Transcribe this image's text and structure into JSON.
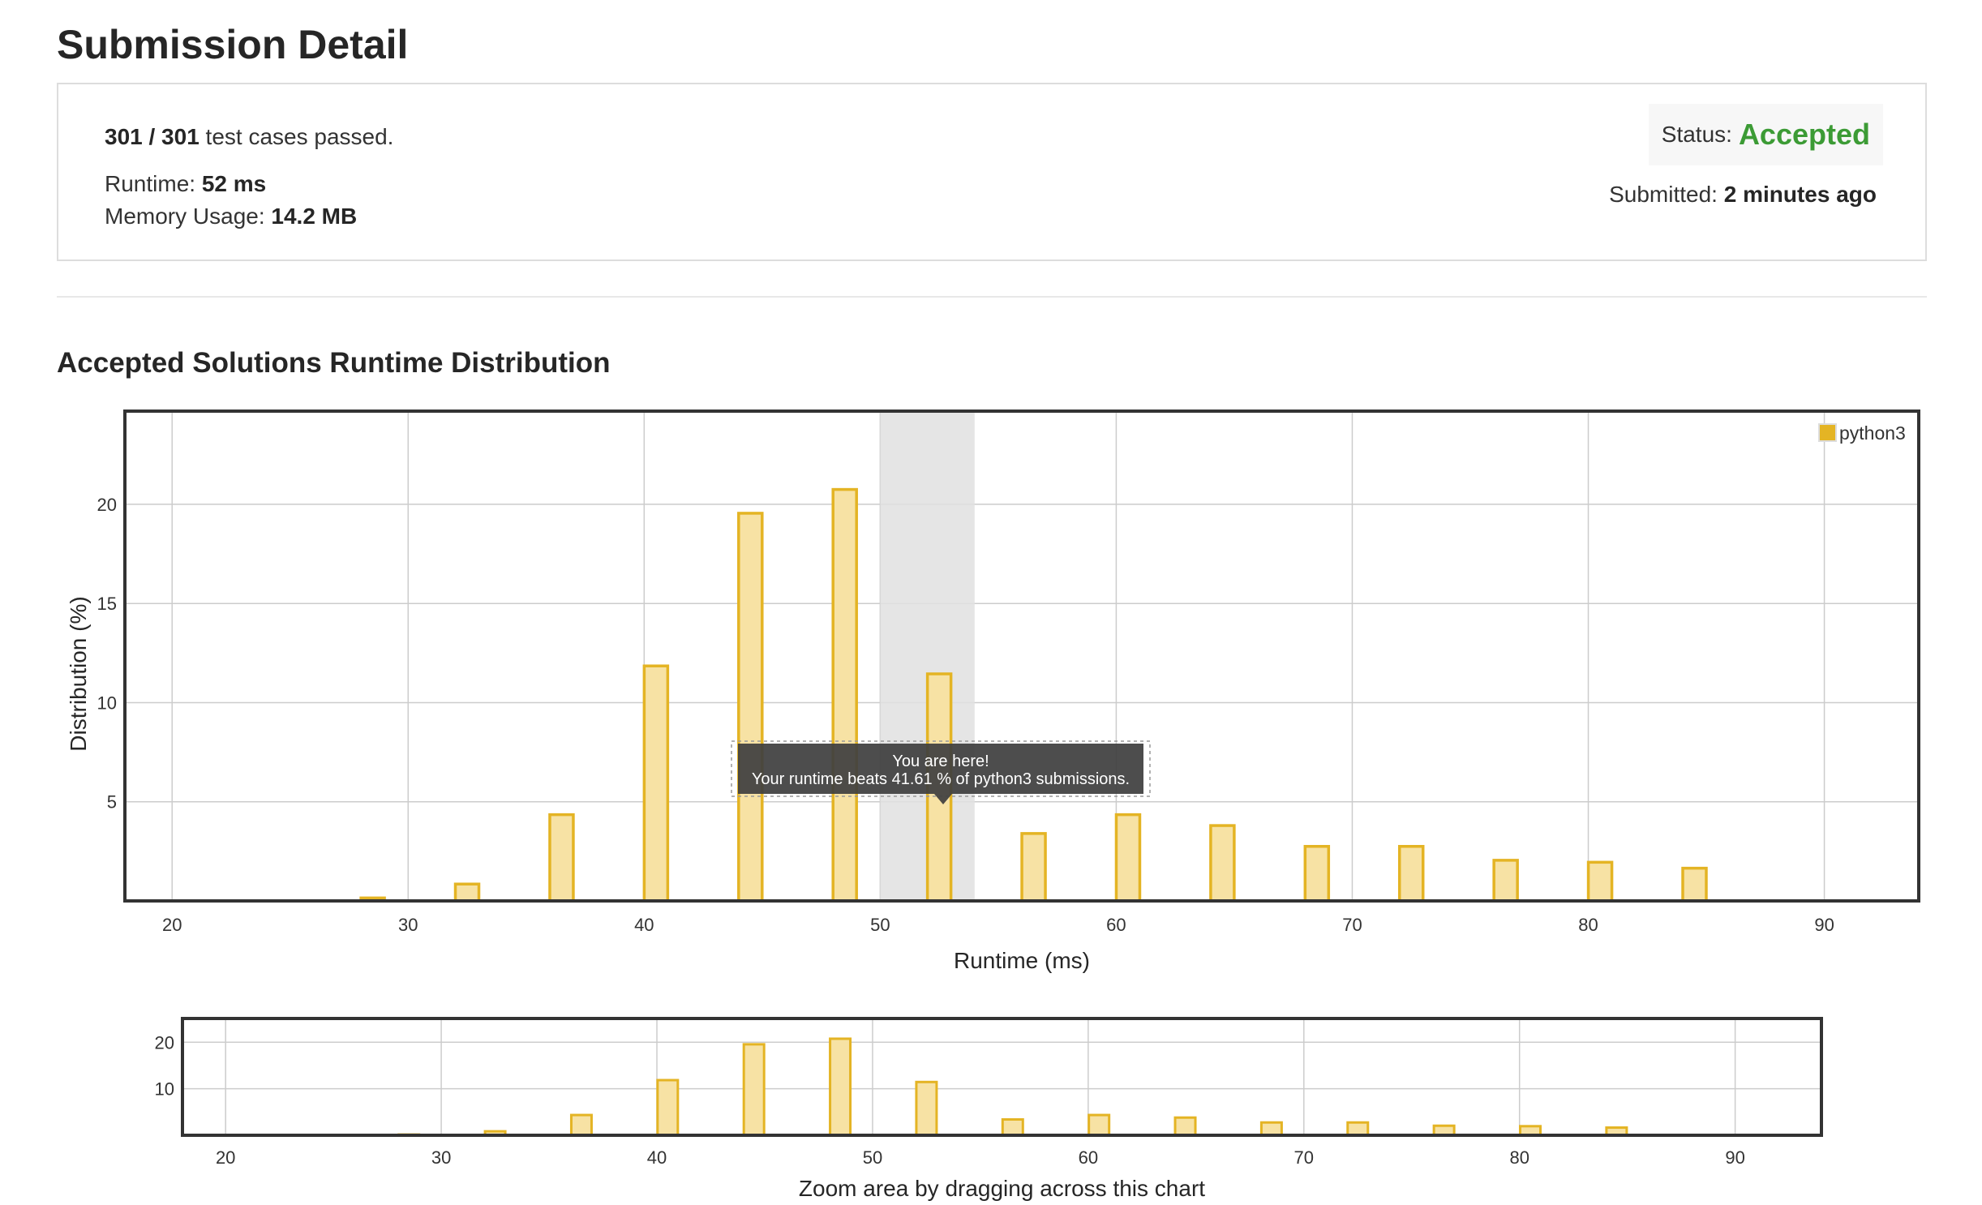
{
  "page": {
    "title": "Submission Detail"
  },
  "summary": {
    "passed": "301 / 301",
    "passed_suffix": " test cases passed.",
    "runtime_label": "Runtime: ",
    "runtime_value": "52 ms",
    "memory_label": "Memory Usage: ",
    "memory_value": "14.2 MB",
    "status_label": "Status:",
    "status_value": "Accepted",
    "submitted_label": "Submitted: ",
    "submitted_value": "2 minutes ago"
  },
  "section": {
    "title": "Accepted Solutions Runtime Distribution"
  },
  "tooltip": {
    "line1": "You are here!",
    "line2": "Your runtime beats 41.61 % of python3 submissions."
  },
  "colors": {
    "bar_fill": "#f7e2a4",
    "bar_stroke": "#e4b424",
    "highlight_band": "#e0e0e0",
    "status_accepted": "#3c9b35",
    "tooltip_bg": "#404040"
  },
  "chart_data": [
    {
      "type": "bar",
      "xlabel": "Runtime (ms)",
      "ylabel": "Distribution (%)",
      "xlim": [
        18,
        94
      ],
      "ylim": [
        0,
        24.7
      ],
      "xticks": [
        20,
        30,
        40,
        50,
        60,
        70,
        80,
        90
      ],
      "yticks": [
        5,
        10,
        15,
        20
      ],
      "legend": "top-right",
      "grid": true,
      "highlight_range": [
        50,
        54
      ],
      "series": [
        {
          "name": "python3",
          "x": [
            28.5,
            32.5,
            36.5,
            40.5,
            44.5,
            48.5,
            52.5,
            56.5,
            60.5,
            64.5,
            68.5,
            72.5,
            76.5,
            80.5,
            84.5
          ],
          "values": [
            0.15,
            0.85,
            4.35,
            11.85,
            19.55,
            20.75,
            11.45,
            3.4,
            4.35,
            3.8,
            2.75,
            2.75,
            2.05,
            1.95,
            1.65
          ]
        }
      ]
    },
    {
      "type": "bar",
      "xlabel": "Zoom area by dragging across this chart",
      "xlim": [
        18,
        94
      ],
      "ylim": [
        0,
        25.1
      ],
      "xticks": [
        20,
        30,
        40,
        50,
        60,
        70,
        80,
        90
      ],
      "yticks": [
        10,
        20
      ],
      "grid": true,
      "series": [
        {
          "x": [
            28.5,
            32.5,
            36.5,
            40.5,
            44.5,
            48.5,
            52.5,
            56.5,
            60.5,
            64.5,
            68.5,
            72.5,
            76.5,
            80.5,
            84.5
          ],
          "values": [
            0.15,
            0.85,
            4.35,
            11.85,
            19.55,
            20.75,
            11.45,
            3.4,
            4.35,
            3.8,
            2.75,
            2.75,
            2.05,
            1.95,
            1.65
          ]
        }
      ]
    }
  ]
}
